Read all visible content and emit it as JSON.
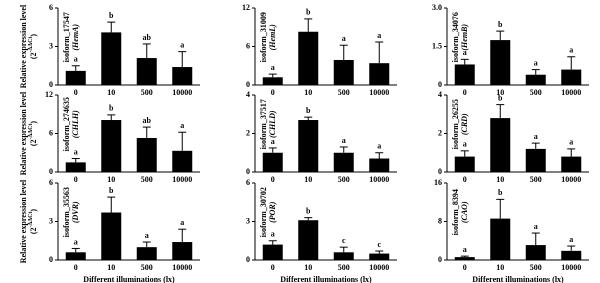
{
  "chart_data": [
    {
      "type": "bar",
      "gene_id": "isoform_17547",
      "gene_name": "(HemA)",
      "y_label": "Relative expression level",
      "y_label_base": "(2",
      "y_label_sup": "-ΔΔCt",
      "y_label_close": ")",
      "categories": [
        "0",
        "10",
        "500",
        "10000"
      ],
      "values": [
        1.1,
        4.1,
        2.1,
        1.4
      ],
      "errors": [
        0.4,
        0.8,
        1.1,
        1.2
      ],
      "significance": [
        "a",
        "b",
        "ab",
        "a"
      ],
      "color": "#000000",
      "ylim": [
        0,
        6
      ],
      "yticks": [
        0,
        3,
        6
      ]
    },
    {
      "type": "bar",
      "gene_id": "isoform_31009",
      "gene_name": "(HemL)",
      "categories": [
        "0",
        "10",
        "500",
        "10000"
      ],
      "values": [
        1.2,
        8.3,
        3.9,
        3.4
      ],
      "errors": [
        0.5,
        2.0,
        2.3,
        3.3
      ],
      "significance": [
        "a",
        "b",
        "a",
        "a"
      ],
      "color": "#000000",
      "ylim": [
        0,
        12
      ],
      "yticks": [
        0,
        6,
        12
      ]
    },
    {
      "type": "bar",
      "gene_id": "isoform_34076",
      "gene_name": "(HemB)",
      "categories": [
        "0",
        "10",
        "500",
        "10000"
      ],
      "values": [
        0.8,
        1.75,
        0.4,
        0.6
      ],
      "errors": [
        0.2,
        0.35,
        0.2,
        0.5
      ],
      "significance": [
        "a",
        "b",
        "a",
        "a"
      ],
      "color": "#000000",
      "ylim": [
        0,
        3
      ],
      "yticks": [
        0,
        1.5,
        {
          "value": 3,
          "label": "3.0"
        }
      ]
    },
    {
      "type": "bar",
      "gene_id": "isoform_274635",
      "gene_name": "(CHLH)",
      "y_label": "Relative expression level",
      "y_label_base": "(2",
      "y_label_sup": "-ΔΔCt",
      "y_label_close": ")",
      "categories": [
        "0",
        "10",
        "500",
        "10000"
      ],
      "values": [
        1.5,
        8.1,
        5.3,
        3.3
      ],
      "errors": [
        0.6,
        0.8,
        1.7,
        2.9
      ],
      "significance": [
        "a",
        "b",
        "ab",
        "a"
      ],
      "color": "#000000",
      "ylim": [
        0,
        12
      ],
      "yticks": [
        0,
        6,
        12
      ]
    },
    {
      "type": "bar",
      "gene_id": "isoform_37517",
      "gene_name": "(CHLD)",
      "categories": [
        "0",
        "10",
        "500",
        "10000"
      ],
      "values": [
        1.0,
        2.7,
        1.0,
        0.7
      ],
      "errors": [
        0.25,
        0.15,
        0.3,
        0.3
      ],
      "significance": [
        "a",
        "b",
        "a",
        "a"
      ],
      "color": "#000000",
      "ylim": [
        0,
        4
      ],
      "yticks": [
        0,
        2,
        4
      ]
    },
    {
      "type": "bar",
      "gene_id": "isoform_26255",
      "gene_name": "(CRD)",
      "categories": [
        "0",
        "10",
        "500",
        "10000"
      ],
      "values": [
        0.8,
        2.8,
        1.2,
        0.8
      ],
      "errors": [
        0.3,
        0.7,
        0.3,
        0.4
      ],
      "significance": [
        "a",
        "b",
        "a",
        "a"
      ],
      "color": "#000000",
      "ylim": [
        0,
        4
      ],
      "yticks": [
        0,
        2,
        4
      ]
    },
    {
      "type": "bar",
      "gene_id": "isoform_35563",
      "gene_name": "(DVR)",
      "y_label": "Relative expression level",
      "y_label_base": "(2",
      "y_label_sup": "-ΔΔCt",
      "y_label_close": ")",
      "x_label": "Different illuminations (lx)",
      "categories": [
        "0",
        "10",
        "500",
        "10000"
      ],
      "values": [
        0.6,
        3.7,
        1.0,
        1.4
      ],
      "errors": [
        0.3,
        1.2,
        0.4,
        1.0
      ],
      "significance": [
        "a",
        "b",
        "a",
        "a"
      ],
      "color": "#000000",
      "ylim": [
        0,
        6
      ],
      "yticks": [
        0,
        3,
        6
      ]
    },
    {
      "type": "bar",
      "gene_id": "isoform_30702",
      "gene_name": "(POR)",
      "x_label": "Different illuminations (lx)",
      "categories": [
        "0",
        "10",
        "500",
        "10000"
      ],
      "values": [
        1.2,
        3.1,
        0.6,
        0.5
      ],
      "errors": [
        0.3,
        0.2,
        0.4,
        0.2
      ],
      "significance": [
        "a",
        "b",
        "c",
        "c"
      ],
      "color": "#000000",
      "ylim": [
        0,
        6
      ],
      "yticks": [
        0,
        3,
        6
      ]
    },
    {
      "type": "bar",
      "gene_id": "isoform_8394",
      "gene_name": "(CAO)",
      "x_label": "Different illuminations (lx)",
      "categories": [
        "0",
        "10",
        "500",
        "10000"
      ],
      "values": [
        0.6,
        8.6,
        3.1,
        1.9
      ],
      "errors": [
        0.2,
        4.0,
        2.5,
        1.0
      ],
      "significance": [
        "a",
        "b",
        "a",
        "a"
      ],
      "color": "#000000",
      "ylim": [
        0,
        16
      ],
      "yticks": [
        0,
        8,
        16
      ]
    }
  ]
}
